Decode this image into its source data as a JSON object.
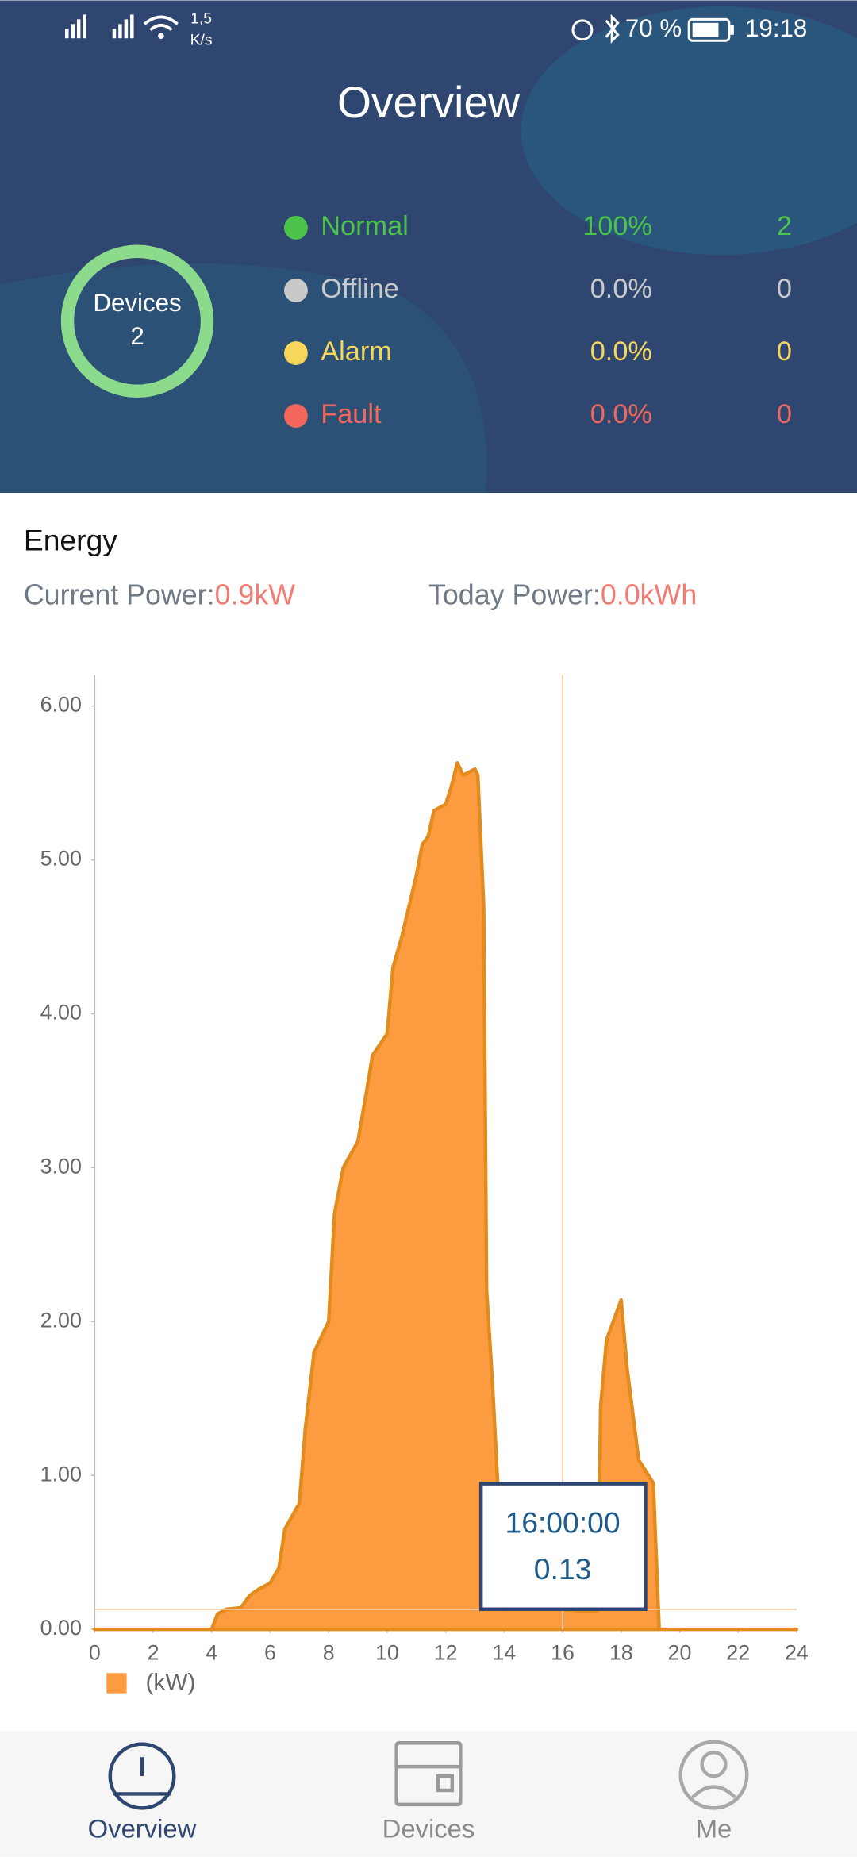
{
  "status_bar": {
    "speed_value": "1,5",
    "speed_unit": "K/s",
    "battery": "70 %",
    "time": "19:18"
  },
  "header": {
    "title": "Overview"
  },
  "devices": {
    "label": "Devices",
    "count": "2",
    "statuses": [
      {
        "name": "Normal",
        "percent": "100%",
        "count": "2",
        "color": "#4cc44c"
      },
      {
        "name": "Offline",
        "percent": "0.0%",
        "count": "0",
        "color": "#c9c9c9"
      },
      {
        "name": "Alarm",
        "percent": "0.0%",
        "count": "0",
        "color": "#f7d65c"
      },
      {
        "name": "Fault",
        "percent": "0.0%",
        "count": "0",
        "color": "#f2665c"
      }
    ]
  },
  "energy": {
    "title": "Energy",
    "current_label": "Current Power:",
    "current_value": "0.9kW",
    "today_label": "Today Power:",
    "today_value": "0.0kWh"
  },
  "chart_data": {
    "type": "area",
    "x": [
      0,
      4,
      4.2,
      4.5,
      5,
      5.3,
      5.6,
      6,
      6.3,
      6.5,
      7,
      7.2,
      7.5,
      8,
      8.2,
      8.5,
      9,
      9.3,
      9.5,
      10,
      10.2,
      10.5,
      11,
      11.2,
      11.4,
      11.6,
      12,
      12.2,
      12.4,
      12.6,
      13,
      13.1,
      13.3,
      13.4,
      13.6,
      14,
      15,
      16,
      16.5,
      17.2,
      17.3,
      17.5,
      18,
      18.2,
      18.6,
      19.1,
      19.3,
      20,
      24
    ],
    "series": [
      {
        "name": "(kW)",
        "color": "#fd9b40",
        "values": [
          0,
          0,
          0.1,
          0.13,
          0.14,
          0.22,
          0.26,
          0.3,
          0.4,
          0.65,
          0.82,
          1.3,
          1.8,
          2.0,
          2.7,
          3.0,
          3.17,
          3.5,
          3.73,
          3.87,
          4.3,
          4.5,
          4.9,
          5.1,
          5.15,
          5.32,
          5.36,
          5.48,
          5.63,
          5.55,
          5.59,
          5.55,
          4.7,
          2.2,
          1.6,
          0.13,
          0.13,
          0.13,
          0.12,
          0.12,
          1.45,
          1.88,
          2.14,
          1.7,
          1.1,
          0.95,
          0,
          0,
          0
        ]
      }
    ],
    "xlim": [
      0,
      24
    ],
    "xticks": [
      0,
      2,
      4,
      6,
      8,
      10,
      12,
      14,
      16,
      18,
      20,
      22,
      24
    ],
    "ylim": [
      0,
      6
    ],
    "yticks": [
      {
        "value": 0,
        "label": "0.00"
      },
      {
        "value": 1,
        "label": "1.00"
      },
      {
        "value": 2,
        "label": "2.00"
      },
      {
        "value": 3,
        "label": "3.00"
      },
      {
        "value": 4,
        "label": "4.00"
      },
      {
        "value": 5,
        "label": "5.00"
      },
      {
        "value": 6,
        "label": "6.00"
      }
    ],
    "tooltip": {
      "x": 16,
      "x_label": "16:00:00",
      "value": 0.13,
      "value_label": "0.13"
    }
  },
  "tab_bar": {
    "tabs": [
      "Overview",
      "Devices",
      "Me"
    ]
  }
}
